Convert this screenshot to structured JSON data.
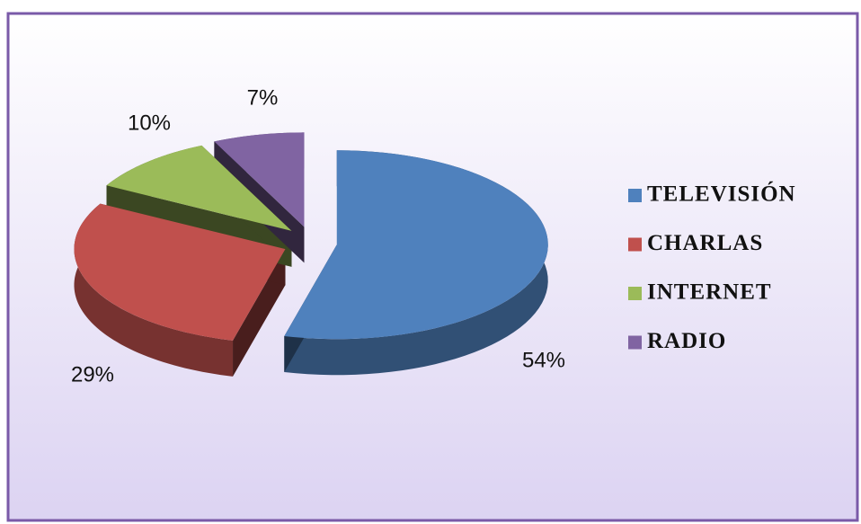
{
  "chart_data": {
    "type": "pie",
    "categories": [
      "TELEVISIÓN",
      "CHARLAS",
      "INTERNET",
      "RADIO"
    ],
    "values": [
      54,
      29,
      10,
      7
    ],
    "value_labels": [
      "54%",
      "29%",
      "10%",
      "7%"
    ],
    "colors": [
      "#4f81bd",
      "#c0504d",
      "#9bbb59",
      "#8064a2"
    ],
    "legend": "right"
  }
}
